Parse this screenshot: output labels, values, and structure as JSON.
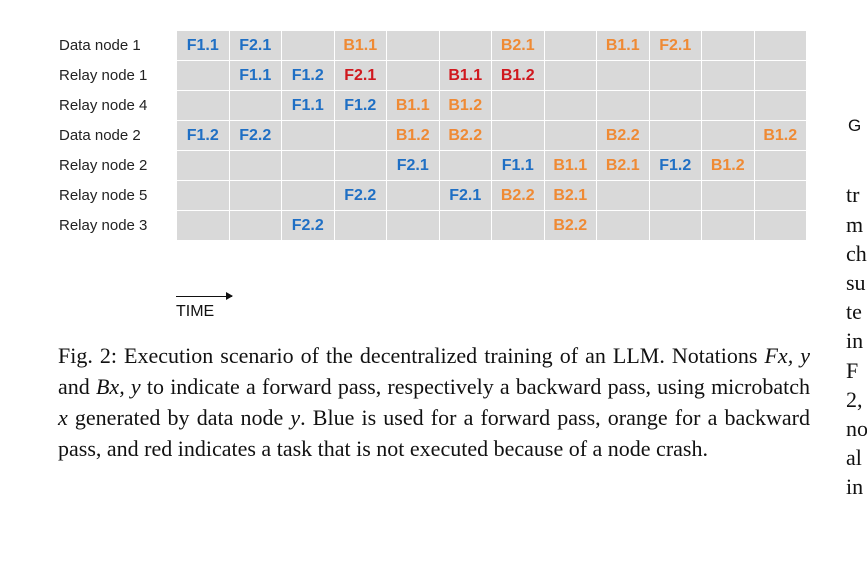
{
  "grid": {
    "rows": [
      {
        "label": "Data node 1",
        "cells": [
          {
            "text": "F1.1",
            "kind": "forward"
          },
          {
            "text": "F2.1",
            "kind": "forward"
          },
          {
            "text": "",
            "kind": ""
          },
          {
            "text": "B1.1",
            "kind": "backward"
          },
          {
            "text": "",
            "kind": ""
          },
          {
            "text": "",
            "kind": ""
          },
          {
            "text": "B2.1",
            "kind": "backward"
          },
          {
            "text": "",
            "kind": ""
          },
          {
            "text": "B1.1",
            "kind": "backward"
          },
          {
            "text": "F2.1",
            "kind": "backward"
          },
          {
            "text": "",
            "kind": ""
          },
          {
            "text": "",
            "kind": ""
          }
        ]
      },
      {
        "label": "Relay node 1",
        "cells": [
          {
            "text": "",
            "kind": ""
          },
          {
            "text": "F1.1",
            "kind": "forward"
          },
          {
            "text": "F1.2",
            "kind": "forward"
          },
          {
            "text": "F2.1",
            "kind": "crash"
          },
          {
            "text": "",
            "kind": ""
          },
          {
            "text": "B1.1",
            "kind": "crash"
          },
          {
            "text": "B1.2",
            "kind": "crash"
          },
          {
            "text": "",
            "kind": ""
          },
          {
            "text": "",
            "kind": ""
          },
          {
            "text": "",
            "kind": ""
          },
          {
            "text": "",
            "kind": ""
          },
          {
            "text": "",
            "kind": ""
          }
        ]
      },
      {
        "label": "Relay node 4",
        "cells": [
          {
            "text": "",
            "kind": ""
          },
          {
            "text": "",
            "kind": ""
          },
          {
            "text": "F1.1",
            "kind": "forward"
          },
          {
            "text": "F1.2",
            "kind": "forward"
          },
          {
            "text": "B1.1",
            "kind": "backward"
          },
          {
            "text": "B1.2",
            "kind": "backward"
          },
          {
            "text": "",
            "kind": ""
          },
          {
            "text": "",
            "kind": ""
          },
          {
            "text": "",
            "kind": ""
          },
          {
            "text": "",
            "kind": ""
          },
          {
            "text": "",
            "kind": ""
          },
          {
            "text": "",
            "kind": ""
          }
        ]
      },
      {
        "label": "Data node 2",
        "cells": [
          {
            "text": "F1.2",
            "kind": "forward"
          },
          {
            "text": "F2.2",
            "kind": "forward"
          },
          {
            "text": "",
            "kind": ""
          },
          {
            "text": "",
            "kind": ""
          },
          {
            "text": "B1.2",
            "kind": "backward"
          },
          {
            "text": "B2.2",
            "kind": "backward"
          },
          {
            "text": "",
            "kind": ""
          },
          {
            "text": "",
            "kind": ""
          },
          {
            "text": "B2.2",
            "kind": "backward"
          },
          {
            "text": "",
            "kind": ""
          },
          {
            "text": "",
            "kind": ""
          },
          {
            "text": "B1.2",
            "kind": "backward"
          }
        ]
      },
      {
        "label": "Relay node 2",
        "cells": [
          {
            "text": "",
            "kind": ""
          },
          {
            "text": "",
            "kind": ""
          },
          {
            "text": "",
            "kind": ""
          },
          {
            "text": "",
            "kind": ""
          },
          {
            "text": "F2.1",
            "kind": "forward"
          },
          {
            "text": "",
            "kind": ""
          },
          {
            "text": "F1.1",
            "kind": "forward"
          },
          {
            "text": "B1.1",
            "kind": "backward"
          },
          {
            "text": "B2.1",
            "kind": "backward"
          },
          {
            "text": "F1.2",
            "kind": "forward"
          },
          {
            "text": "B1.2",
            "kind": "backward"
          },
          {
            "text": "",
            "kind": ""
          }
        ]
      },
      {
        "label": "Relay node 5",
        "cells": [
          {
            "text": "",
            "kind": ""
          },
          {
            "text": "",
            "kind": ""
          },
          {
            "text": "",
            "kind": ""
          },
          {
            "text": "F2.2",
            "kind": "forward"
          },
          {
            "text": "",
            "kind": ""
          },
          {
            "text": "F2.1",
            "kind": "forward"
          },
          {
            "text": "B2.2",
            "kind": "backward"
          },
          {
            "text": "B2.1",
            "kind": "backward"
          },
          {
            "text": "",
            "kind": ""
          },
          {
            "text": "",
            "kind": ""
          },
          {
            "text": "",
            "kind": ""
          },
          {
            "text": "",
            "kind": ""
          }
        ]
      },
      {
        "label": "Relay node 3",
        "cells": [
          {
            "text": "",
            "kind": ""
          },
          {
            "text": "",
            "kind": ""
          },
          {
            "text": "F2.2",
            "kind": "forward"
          },
          {
            "text": "",
            "kind": ""
          },
          {
            "text": "",
            "kind": ""
          },
          {
            "text": "",
            "kind": ""
          },
          {
            "text": "",
            "kind": ""
          },
          {
            "text": "B2.2",
            "kind": "backward"
          },
          {
            "text": "",
            "kind": ""
          },
          {
            "text": "",
            "kind": ""
          },
          {
            "text": "",
            "kind": ""
          },
          {
            "text": "",
            "kind": ""
          }
        ]
      }
    ]
  },
  "time_label": "TIME",
  "caption": {
    "segments": [
      {
        "text": "Fig. 2: Execution scenario of the decentralized training of an LLM. Notations ",
        "math": false
      },
      {
        "text": "Fx, y",
        "math": true
      },
      {
        "text": " and ",
        "math": false
      },
      {
        "text": "Bx, y",
        "math": true
      },
      {
        "text": " to indicate a forward pass, respectively a backward pass, using microbatch ",
        "math": false
      },
      {
        "text": "x",
        "math": true
      },
      {
        "text": " generated by data node ",
        "math": false
      },
      {
        "text": "y",
        "math": true
      },
      {
        "text": ". Blue is used for a forward pass, orange for a backward pass, and red indicates a task that is not executed because of a node crash.",
        "math": false
      }
    ]
  },
  "right_column": {
    "heading_fragment": "G",
    "line_fragments": [
      "tr",
      "m",
      "ch",
      "su",
      "te",
      "in",
      "F",
      "2,",
      "no",
      "al",
      "in"
    ]
  },
  "colors": {
    "forward": "#1f6fc4",
    "backward": "#ef8a34",
    "crash": "#d0181e",
    "cell_bg": "#d9d9d9"
  }
}
